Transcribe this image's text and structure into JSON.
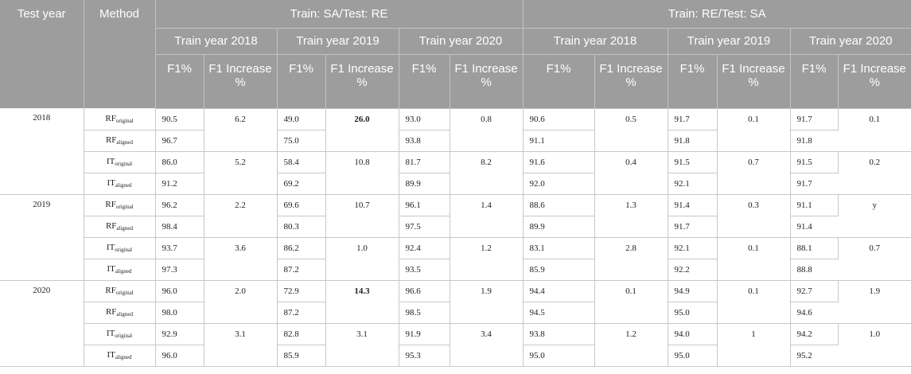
{
  "header": {
    "test_year": "Test year",
    "method": "Method",
    "groups": [
      "Train: SA/Test: RE",
      "Train: RE/Test: SA"
    ],
    "train_years": [
      "Train year 2018",
      "Train year 2019",
      "Train year 2020",
      "Train year 2018",
      "Train year 2019",
      "Train year 2020"
    ],
    "f1": "F1%",
    "f1_increase": "F1 Increase %"
  },
  "methods": {
    "rf": "RF",
    "it": "IT",
    "original": "original",
    "aligned": "aligned"
  },
  "blocks": [
    {
      "test_year": "2018",
      "pairs": [
        {
          "base": "RF",
          "orig": [
            "90.5",
            "49.0",
            "93.0",
            "90.6",
            "91.7",
            "91.7"
          ],
          "aligned": [
            "96.7",
            "75.0",
            "93.8",
            "91.1",
            "91.8",
            "91.8"
          ],
          "increase": [
            "6.2",
            "26.0",
            "0.8",
            "0.5",
            "0.1",
            "0.1"
          ]
        },
        {
          "base": "IT",
          "orig": [
            "86.0",
            "58.4",
            "81.7",
            "91.6",
            "91.5",
            "91.5"
          ],
          "aligned": [
            "91.2",
            "69.2",
            "89.9",
            "92.0",
            "92.1",
            "91.7"
          ],
          "increase": [
            "5.2",
            "10.8",
            "8.2",
            "0.4",
            "0.7",
            "0.2"
          ]
        }
      ]
    },
    {
      "test_year": "2019",
      "pairs": [
        {
          "base": "RF",
          "orig": [
            "96.2",
            "69.6",
            "96.1",
            "88.6",
            "91.4",
            "91.1"
          ],
          "aligned": [
            "98.4",
            "80.3",
            "97.5",
            "89.9",
            "91.7",
            "91.4"
          ],
          "increase": [
            "2.2",
            "10.7",
            "1.4",
            "1.3",
            "0.3",
            "y"
          ]
        },
        {
          "base": "IT",
          "orig": [
            "93.7",
            "86.2",
            "92.4",
            "83.1",
            "92.1",
            "88.1"
          ],
          "aligned": [
            "97.3",
            "87.2",
            "93.5",
            "85.9",
            "92.2",
            "88.8"
          ],
          "increase": [
            "3.6",
            "1.0",
            "1.2",
            "2.8",
            "0.1",
            "0.7"
          ]
        }
      ]
    },
    {
      "test_year": "2020",
      "pairs": [
        {
          "base": "RF",
          "orig": [
            "96.0",
            "72.9",
            "96.6",
            "94.4",
            "94.9",
            "92.7"
          ],
          "aligned": [
            "98.0",
            "87.2",
            "98.5",
            "94.5",
            "95.0",
            "94.6"
          ],
          "increase": [
            "2.0",
            "14.3",
            "1.9",
            "0.1",
            "0.1",
            "1.9"
          ]
        },
        {
          "base": "IT",
          "orig": [
            "92.9",
            "82.8",
            "91.9",
            "93.8",
            "94.0",
            "94.2"
          ],
          "aligned": [
            "96.0",
            "85.9",
            "95.3",
            "95.0",
            "95.0",
            "95.2"
          ],
          "increase": [
            "3.1",
            "3.1",
            "3.4",
            "1.2",
            "1",
            "1.0"
          ]
        }
      ]
    }
  ],
  "bold_cells": [
    "0-0-1",
    "2-0-1"
  ]
}
